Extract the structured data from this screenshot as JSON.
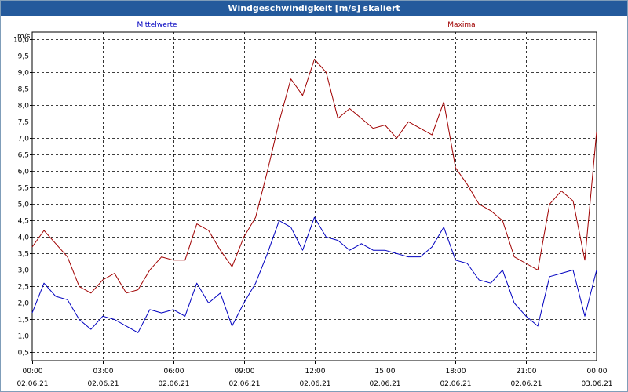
{
  "window": {
    "title": "Windgeschwindigkeit [m/s] skaliert"
  },
  "chart_data": {
    "type": "line",
    "title": "Windgeschwindigkeit [m/s] skaliert",
    "ylabel": "m/s",
    "xlabel": "",
    "ylim": [
      0.5,
      10.0
    ],
    "xlim_hours": [
      0,
      24
    ],
    "grid": true,
    "y_ticks": [
      "0,5",
      "1,0",
      "1,5",
      "2,0",
      "2,5",
      "3,0",
      "3,5",
      "4,0",
      "4,5",
      "5,0",
      "5,5",
      "6,0",
      "6,5",
      "7,0",
      "7,5",
      "8,0",
      "8,5",
      "9,0",
      "9,5",
      "10,0"
    ],
    "x_ticks": [
      {
        "time": "00:00",
        "date": "02.06.21"
      },
      {
        "time": "03:00",
        "date": "02.06.21"
      },
      {
        "time": "06:00",
        "date": "02.06.21"
      },
      {
        "time": "09:00",
        "date": "02.06.21"
      },
      {
        "time": "12:00",
        "date": "02.06.21"
      },
      {
        "time": "15:00",
        "date": "02.06.21"
      },
      {
        "time": "18:00",
        "date": "02.06.21"
      },
      {
        "time": "21:00",
        "date": "02.06.21"
      },
      {
        "time": "00:00",
        "date": "03.06.21"
      }
    ],
    "series": [
      {
        "name": "Mittelwerte",
        "color": "#0000c0",
        "x_hours": [
          0,
          0.5,
          1,
          1.5,
          2,
          2.5,
          3,
          3.5,
          4,
          4.5,
          5,
          5.5,
          6,
          6.5,
          7,
          7.5,
          8,
          8.5,
          9,
          9.5,
          10,
          10.5,
          11,
          11.5,
          12,
          12.5,
          13,
          13.5,
          14,
          14.5,
          15,
          15.5,
          16,
          16.5,
          17,
          17.5,
          18,
          18.5,
          19,
          19.5,
          20,
          20.5,
          21,
          21.5,
          22,
          22.5,
          23,
          23.5,
          24
        ],
        "values": [
          1.7,
          2.6,
          2.2,
          2.1,
          1.5,
          1.2,
          1.6,
          1.5,
          1.3,
          1.1,
          1.8,
          1.7,
          1.8,
          1.6,
          2.6,
          2.0,
          2.3,
          1.3,
          2.0,
          2.6,
          3.5,
          4.5,
          4.3,
          3.6,
          4.6,
          4.0,
          3.9,
          3.6,
          3.8,
          3.6,
          3.6,
          3.5,
          3.4,
          3.4,
          3.7,
          4.3,
          3.3,
          3.2,
          2.7,
          2.6,
          3.0,
          2.0,
          1.6,
          1.3,
          2.8,
          2.9,
          3.0,
          1.6,
          3.0
        ]
      },
      {
        "name": "Maxima",
        "color": "#a00000",
        "x_hours": [
          0,
          0.5,
          1,
          1.5,
          2,
          2.5,
          3,
          3.5,
          4,
          4.5,
          5,
          5.5,
          6,
          6.5,
          7,
          7.5,
          8,
          8.5,
          9,
          9.5,
          10,
          10.5,
          11,
          11.5,
          12,
          12.5,
          13,
          13.5,
          14,
          14.5,
          15,
          15.5,
          16,
          16.5,
          17,
          17.5,
          18,
          18.5,
          19,
          19.5,
          20,
          20.5,
          21,
          21.5,
          22,
          22.5,
          23,
          23.5,
          24
        ],
        "values": [
          3.7,
          4.2,
          3.8,
          3.4,
          2.5,
          2.3,
          2.7,
          2.9,
          2.3,
          2.4,
          3.0,
          3.4,
          3.3,
          3.3,
          4.4,
          4.2,
          3.6,
          3.1,
          4.0,
          4.6,
          6.0,
          7.5,
          8.8,
          8.3,
          9.4,
          9.0,
          7.6,
          7.9,
          7.6,
          7.3,
          7.4,
          7.0,
          7.5,
          7.3,
          7.1,
          8.1,
          6.1,
          5.6,
          5.0,
          4.8,
          4.5,
          3.4,
          3.2,
          3.0,
          5.0,
          5.4,
          5.1,
          3.3,
          7.2
        ]
      }
    ]
  }
}
